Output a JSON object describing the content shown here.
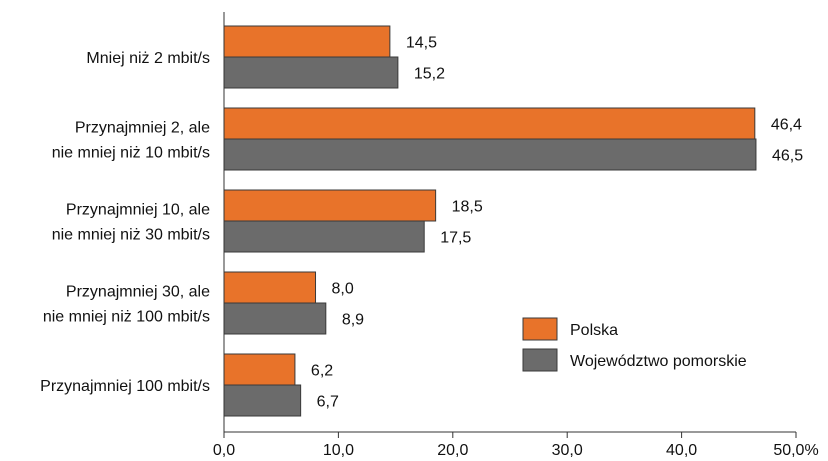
{
  "chart_data": {
    "type": "bar",
    "orientation": "horizontal",
    "title": "",
    "xlabel": "",
    "ylabel": "",
    "categories": [
      [
        "Mniej niż 2 mbit/s"
      ],
      [
        "Przynajmniej 2, ale",
        "nie mniej niż 10 mbit/s"
      ],
      [
        "Przynajmniej 10, ale",
        "nie mniej niż 30 mbit/s"
      ],
      [
        "Przynajmniej 30, ale",
        "nie mniej niż 100 mbit/s"
      ],
      [
        "Przynajmniej 100 mbit/s"
      ]
    ],
    "series": [
      {
        "name": "Polska",
        "color": "#E8732A",
        "values": [
          14.5,
          46.4,
          18.5,
          8.0,
          6.2
        ],
        "labels": [
          "14,5",
          "46,4",
          "18,5",
          "8,0",
          "6,2"
        ]
      },
      {
        "name": "Województwo pomorskie",
        "color": "#6B6B6B",
        "values": [
          15.2,
          46.5,
          17.5,
          8.9,
          6.7
        ],
        "labels": [
          "15,2",
          "46,5",
          "17,5",
          "8,9",
          "6,7"
        ]
      }
    ],
    "xlim": [
      0,
      50
    ],
    "xticks": [
      0,
      10,
      20,
      30,
      40,
      50
    ],
    "xtick_labels": [
      "0,0",
      "10,0",
      "20,0",
      "30,0",
      "40,0",
      "50,0%"
    ],
    "grid": false,
    "legend_position": "bottom-right"
  }
}
